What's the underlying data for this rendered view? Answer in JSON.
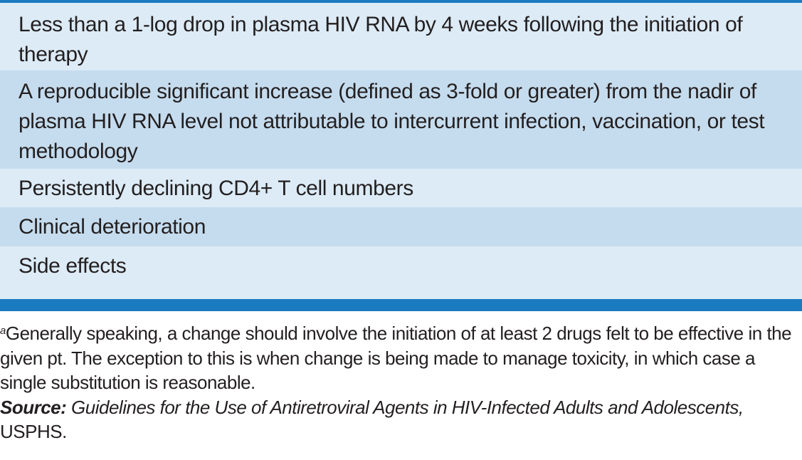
{
  "table": {
    "rows": [
      "Less than a 1-log drop in plasma HIV RNA by 4 weeks following the initiation of therapy",
      "A reproducible significant increase (defined as 3-fold or greater) from the nadir of plasma HIV RNA level not attributable to intercurrent infection, vaccination, or test methodology",
      "Persistently declining CD4+ T cell numbers",
      "Clinical deterioration",
      "Side effects"
    ],
    "colors": {
      "header_rule": "#1a7bc0",
      "row_light": "#dcebf6",
      "row_dark": "#c5dcee"
    }
  },
  "footnote": {
    "marker": "a",
    "text": "Generally speaking, a change should involve the initiation of at least 2 drugs felt to be effective in the given pt. The exception to this is when change is being made to manage toxicity, in which case a single substitution is reasonable.",
    "source_label": "Source:",
    "source_title": "Guidelines for the Use of Antiretroviral Agents in HIV-Infected Adults and Adolescents,",
    "source_org": "USPHS."
  }
}
